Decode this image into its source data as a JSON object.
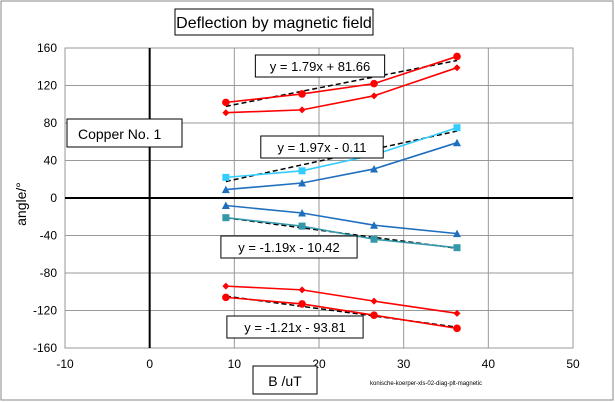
{
  "chart_data": {
    "type": "scatter",
    "title": "Deflection by magnetic field",
    "xlabel": "B /uT",
    "ylabel": "angle/°",
    "xlim": [
      -10,
      50
    ],
    "ylim": [
      -160,
      160
    ],
    "x_ticks": [
      -10,
      0,
      10,
      20,
      30,
      40,
      50
    ],
    "y_ticks": [
      160,
      120,
      80,
      40,
      0,
      -40,
      -80,
      -120,
      -160
    ],
    "grid": true,
    "annotation_box": "Copper No. 1",
    "footnote": "konische-koerper-xls-02-diag-plt-magnetic",
    "series": [
      {
        "color": "#ff0000",
        "marker": "circle",
        "x": [
          9,
          18,
          26.5,
          36.3
        ],
        "y": [
          102,
          111,
          122,
          151
        ]
      },
      {
        "color": "#ff0000",
        "marker": "diamond",
        "x": [
          9,
          18,
          26.5,
          36.3
        ],
        "y": [
          91,
          94,
          109,
          139
        ]
      },
      {
        "color": "#33ccff",
        "marker": "square",
        "x": [
          9,
          18,
          26.5,
          36.3
        ],
        "y": [
          22,
          29,
          46,
          75
        ]
      },
      {
        "color": "#1f6fbf",
        "marker": "triangle",
        "x": [
          9,
          18,
          26.5,
          36.3
        ],
        "y": [
          9,
          16,
          31,
          59
        ]
      },
      {
        "color": "#1f6fbf",
        "marker": "triangle",
        "x": [
          9,
          18,
          26.5,
          36.3
        ],
        "y": [
          -8,
          -16,
          -29,
          -38
        ]
      },
      {
        "color": "#3399aa",
        "marker": "square",
        "x": [
          9,
          18,
          26.5,
          36.3
        ],
        "y": [
          -21,
          -30,
          -44,
          -53
        ]
      },
      {
        "color": "#ff0000",
        "marker": "diamond",
        "x": [
          9,
          18,
          26.5,
          36.3
        ],
        "y": [
          -94,
          -98,
          -110,
          -123
        ]
      },
      {
        "color": "#ff0000",
        "marker": "circle",
        "x": [
          9,
          18,
          26.5,
          36.3
        ],
        "y": [
          -106,
          -113,
          -125,
          -139
        ]
      }
    ],
    "trendlines": [
      {
        "equation": "y = 1.79x + 81.66",
        "slope": 1.79,
        "intercept": 81.66,
        "x_range": [
          9,
          36.3
        ],
        "label_pos": [
          320,
          66
        ]
      },
      {
        "equation": "y = 1.97x - 0.11",
        "slope": 1.97,
        "intercept": -0.11,
        "x_range": [
          9,
          36.3
        ],
        "label_pos": [
          322,
          147
        ]
      },
      {
        "equation": "y = -1.19x - 10.42",
        "slope": -1.19,
        "intercept": -10.42,
        "x_range": [
          9,
          36.3
        ],
        "label_pos": [
          289,
          247
        ]
      },
      {
        "equation": "y = -1.21x - 93.81",
        "slope": -1.21,
        "intercept": -93.81,
        "x_range": [
          9,
          36.3
        ],
        "label_pos": [
          295,
          327
        ]
      }
    ]
  }
}
